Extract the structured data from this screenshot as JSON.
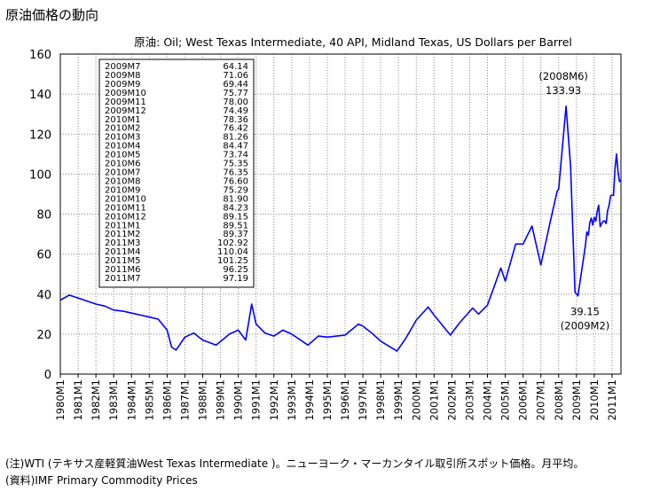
{
  "page_title": "原油価格の動向",
  "notes": {
    "note1": "(注)WTI (テキサス産軽質油West Texas Intermediate )。ニューヨーク・マーカンタイル取引所スポット価格。月平均。",
    "note2": "(資料)IMF Primary Commodity Prices"
  },
  "colors": {
    "line": "#0000ff",
    "grid": "#888888",
    "text": "#000000"
  },
  "chart_data": {
    "type": "line",
    "title": "原油: Oil; West Texas Intermediate, 40 API, Midland Texas, US Dollars per Barrel",
    "xlabel": "",
    "ylabel": "",
    "ylim": [
      0,
      160
    ],
    "yticks": [
      0,
      20,
      40,
      60,
      80,
      100,
      120,
      140,
      160
    ],
    "xlim": [
      "1980M1",
      "2011M7"
    ],
    "xticks": [
      "1980M1",
      "1981M1",
      "1982M1",
      "1983M1",
      "1984M1",
      "1985M1",
      "1986M1",
      "1987M1",
      "1988M1",
      "1989M1",
      "1990M1",
      "1991M1",
      "1992M1",
      "1993M1",
      "1994M1",
      "1995M1",
      "1996M1",
      "1997M1",
      "1998M1",
      "1999M1",
      "2000M1",
      "2001M1",
      "2002M1",
      "2003M1",
      "2004M1",
      "2005M1",
      "2006M1",
      "2007M1",
      "2008M1",
      "2009M1",
      "2010M1",
      "2011M1"
    ],
    "grid": true,
    "series": [
      {
        "x": [
          "1980M1",
          "1980M7",
          "1981M1",
          "1981M7",
          "1982M1",
          "1982M7",
          "1983M1",
          "1983M7",
          "1984M1",
          "1984M7",
          "1985M1",
          "1985M7",
          "1986M1",
          "1986M4",
          "1986M7",
          "1987M1",
          "1987M7",
          "1988M1",
          "1988M10",
          "1989M7",
          "1990M1",
          "1990M6",
          "1990M10",
          "1991M1",
          "1991M7",
          "1992M1",
          "1992M7",
          "1993M1",
          "1993M12",
          "1994M7",
          "1995M1",
          "1996M1",
          "1996M10",
          "1997M1",
          "1997M7",
          "1998M1",
          "1998M12",
          "1999M6",
          "2000M1",
          "2000M9",
          "2001M1",
          "2001M12",
          "2002M6",
          "2003M3",
          "2003M7",
          "2004M1",
          "2004M10",
          "2005M1",
          "2005M8",
          "2006M1",
          "2006M7",
          "2007M1",
          "2007M7",
          "2007M12",
          "2008M1",
          "2008M6",
          "2008M9",
          "2008M12",
          "2009M2",
          "2009M7",
          "2009M8",
          "2009M9",
          "2009M10",
          "2009M11",
          "2009M12",
          "2010M1",
          "2010M2",
          "2010M3",
          "2010M4",
          "2010M5",
          "2010M6",
          "2010M7",
          "2010M8",
          "2010M9",
          "2010M10",
          "2010M11",
          "2010M12",
          "2011M1",
          "2011M2",
          "2011M3",
          "2011M4",
          "2011M5",
          "2011M6",
          "2011M7"
        ],
        "values": [
          37.0,
          39.5,
          38.0,
          36.5,
          35.0,
          34.0,
          32.0,
          31.5,
          30.5,
          29.5,
          28.5,
          27.5,
          22.0,
          13.5,
          12.0,
          18.5,
          20.5,
          17.0,
          14.5,
          20.0,
          22.0,
          17.0,
          35.0,
          25.0,
          20.5,
          19.0,
          22.0,
          20.0,
          14.5,
          19.0,
          18.5,
          19.5,
          25.0,
          24.0,
          20.5,
          16.5,
          11.5,
          18.0,
          27.0,
          33.5,
          29.5,
          19.5,
          25.5,
          33.0,
          30.0,
          34.5,
          53.0,
          46.5,
          65.0,
          65.0,
          74.0,
          54.5,
          75.0,
          91.5,
          92.5,
          133.93,
          104.0,
          41.0,
          39.15,
          64.14,
          71.06,
          69.44,
          75.77,
          78.0,
          74.49,
          78.36,
          76.42,
          81.26,
          84.47,
          73.74,
          75.35,
          76.35,
          76.6,
          75.29,
          81.9,
          84.23,
          89.15,
          89.51,
          89.37,
          102.92,
          110.04,
          101.25,
          96.25,
          97.19
        ]
      }
    ],
    "annotations": [
      {
        "text": "(2008M6)",
        "x": "2008M6",
        "y": 133.93
      },
      {
        "text": "133.93",
        "x": "2008M6",
        "y": 133.93
      },
      {
        "text": "39.15",
        "x": "2009M2",
        "y": 39.15
      },
      {
        "text": "(2009M2)",
        "x": "2009M2",
        "y": 39.15
      }
    ],
    "data_table": [
      [
        "2009M7",
        "64.14"
      ],
      [
        "2009M8",
        "71.06"
      ],
      [
        "2009M9",
        "69.44"
      ],
      [
        "2009M10",
        "75.77"
      ],
      [
        "2009M11",
        "78.00"
      ],
      [
        "2009M12",
        "74.49"
      ],
      [
        "2010M1",
        "78.36"
      ],
      [
        "2010M2",
        "76.42"
      ],
      [
        "2010M3",
        "81.26"
      ],
      [
        "2010M4",
        "84.47"
      ],
      [
        "2010M5",
        "73.74"
      ],
      [
        "2010M6",
        "75.35"
      ],
      [
        "2010M7",
        "76.35"
      ],
      [
        "2010M8",
        "76.60"
      ],
      [
        "2010M9",
        "75.29"
      ],
      [
        "2010M10",
        "81.90"
      ],
      [
        "2010M11",
        "84.23"
      ],
      [
        "2010M12",
        "89.15"
      ],
      [
        "2011M1",
        "89.51"
      ],
      [
        "2011M2",
        "89.37"
      ],
      [
        "2011M3",
        "102.92"
      ],
      [
        "2011M4",
        "110.04"
      ],
      [
        "2011M5",
        "101.25"
      ],
      [
        "2011M6",
        "96.25"
      ],
      [
        "2011M7",
        "97.19"
      ]
    ]
  }
}
